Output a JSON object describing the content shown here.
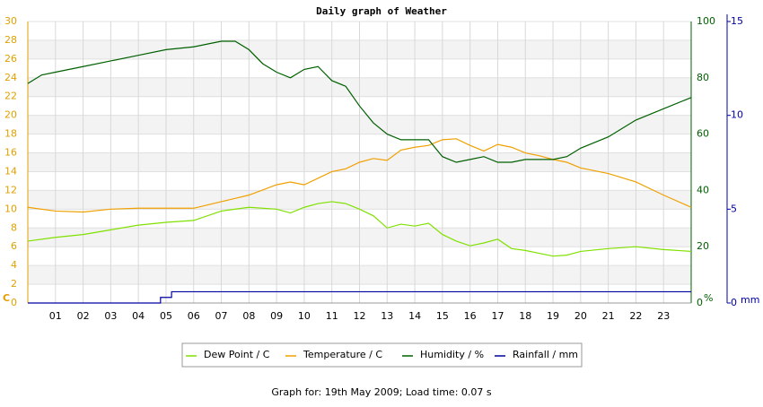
{
  "chart_data": {
    "type": "line",
    "title": "Daily graph of Weather",
    "footer": "Graph for: 19th May 2009; Load time: 0.07 s",
    "ylabel": "C",
    "y2label": "%",
    "y3label": "mm",
    "xlim": [
      0,
      24
    ],
    "xticks": [
      {
        "value": 1,
        "label": "01"
      },
      {
        "value": 2,
        "label": "02"
      },
      {
        "value": 3,
        "label": "03"
      },
      {
        "value": 4,
        "label": "04"
      },
      {
        "value": 5,
        "label": "05"
      },
      {
        "value": 6,
        "label": "06"
      },
      {
        "value": 7,
        "label": "07"
      },
      {
        "value": 8,
        "label": "08"
      },
      {
        "value": 9,
        "label": "09"
      },
      {
        "value": 10,
        "label": "10"
      },
      {
        "value": 11,
        "label": "11"
      },
      {
        "value": 12,
        "label": "12"
      },
      {
        "value": 13,
        "label": "13"
      },
      {
        "value": 14,
        "label": "14"
      },
      {
        "value": 15,
        "label": "15"
      },
      {
        "value": 16,
        "label": "16"
      },
      {
        "value": 17,
        "label": "17"
      },
      {
        "value": 18,
        "label": "18"
      },
      {
        "value": 19,
        "label": "19"
      },
      {
        "value": 20,
        "label": "20"
      },
      {
        "value": 21,
        "label": "21"
      },
      {
        "value": 22,
        "label": "22"
      },
      {
        "value": 23,
        "label": "23"
      }
    ],
    "ylim": [
      0,
      30
    ],
    "yticks": [
      0,
      2,
      4,
      6,
      8,
      10,
      12,
      14,
      16,
      18,
      20,
      22,
      24,
      26,
      28,
      30
    ],
    "y2lim": [
      0,
      100
    ],
    "y2ticks": [
      0,
      20,
      40,
      60,
      80,
      100
    ],
    "y3lim": [
      0,
      15
    ],
    "y3ticks": [
      0,
      5,
      10,
      15
    ],
    "grid": true,
    "series": [
      {
        "name": "Dew Point / C",
        "color": "#80e000",
        "x": [
          0,
          1,
          2,
          3,
          4,
          5,
          6,
          7,
          8,
          9,
          9.5,
          10,
          10.5,
          11,
          11.5,
          12,
          12.5,
          13,
          13.5,
          14,
          14.5,
          15,
          15.5,
          16,
          16.5,
          17,
          17.5,
          18,
          18.5,
          19,
          19.5,
          20,
          21,
          22,
          23,
          24
        ],
        "values": [
          6.6,
          7.0,
          7.3,
          7.8,
          8.3,
          8.6,
          8.8,
          9.8,
          10.2,
          10.0,
          9.6,
          10.2,
          10.6,
          10.8,
          10.6,
          10.0,
          9.3,
          8.0,
          8.4,
          8.2,
          8.5,
          7.3,
          6.6,
          6.1,
          6.4,
          6.8,
          5.8,
          5.6,
          5.3,
          5.0,
          5.1,
          5.5,
          5.8,
          6.0,
          5.7,
          5.5
        ]
      },
      {
        "name": "Temperature / C",
        "color": "#f0a000",
        "x": [
          0,
          1,
          2,
          3,
          4,
          5,
          6,
          7,
          8,
          9,
          9.5,
          10,
          10.5,
          11,
          11.5,
          12,
          12.5,
          13,
          13.5,
          14,
          14.5,
          15,
          15.5,
          16,
          16.5,
          17,
          17.5,
          18,
          18.5,
          19,
          19.5,
          20,
          21,
          22,
          23,
          24
        ],
        "values": [
          10.2,
          9.8,
          9.7,
          10.0,
          10.1,
          10.1,
          10.1,
          10.8,
          11.5,
          12.6,
          12.9,
          12.6,
          13.3,
          14.0,
          14.3,
          15.0,
          15.4,
          15.2,
          16.3,
          16.6,
          16.8,
          17.4,
          17.5,
          16.8,
          16.2,
          16.9,
          16.6,
          16.0,
          15.7,
          15.3,
          15.0,
          14.4,
          13.8,
          12.9,
          11.5,
          10.2
        ]
      },
      {
        "name": "Humidity / %",
        "color": "#006000",
        "axis": "y2",
        "x": [
          0,
          0.5,
          1,
          2,
          3,
          4,
          5,
          6,
          6.5,
          7,
          7.5,
          8,
          8.5,
          9,
          9.5,
          10,
          10.5,
          11,
          11.5,
          12,
          12.5,
          13,
          13.5,
          14,
          14.5,
          15,
          15.5,
          16,
          16.5,
          17,
          17.5,
          18,
          18.5,
          19,
          19.5,
          20,
          21,
          22,
          23,
          24
        ],
        "values": [
          78,
          81,
          82,
          84,
          86,
          88,
          90,
          91,
          92,
          93,
          93,
          90,
          85,
          82,
          80,
          83,
          84,
          79,
          77,
          70,
          64,
          60,
          58,
          58,
          58,
          52,
          50,
          51,
          52,
          50,
          50,
          51,
          51,
          51,
          52,
          55,
          59,
          65,
          69,
          73
        ]
      },
      {
        "name": "Rainfall / mm",
        "color": "#0000a0",
        "axis": "y3",
        "x": [
          0,
          4.8,
          4.8,
          5.2,
          5.2,
          24
        ],
        "values": [
          0,
          0,
          0.3,
          0.3,
          0.6,
          0.6
        ]
      }
    ]
  }
}
